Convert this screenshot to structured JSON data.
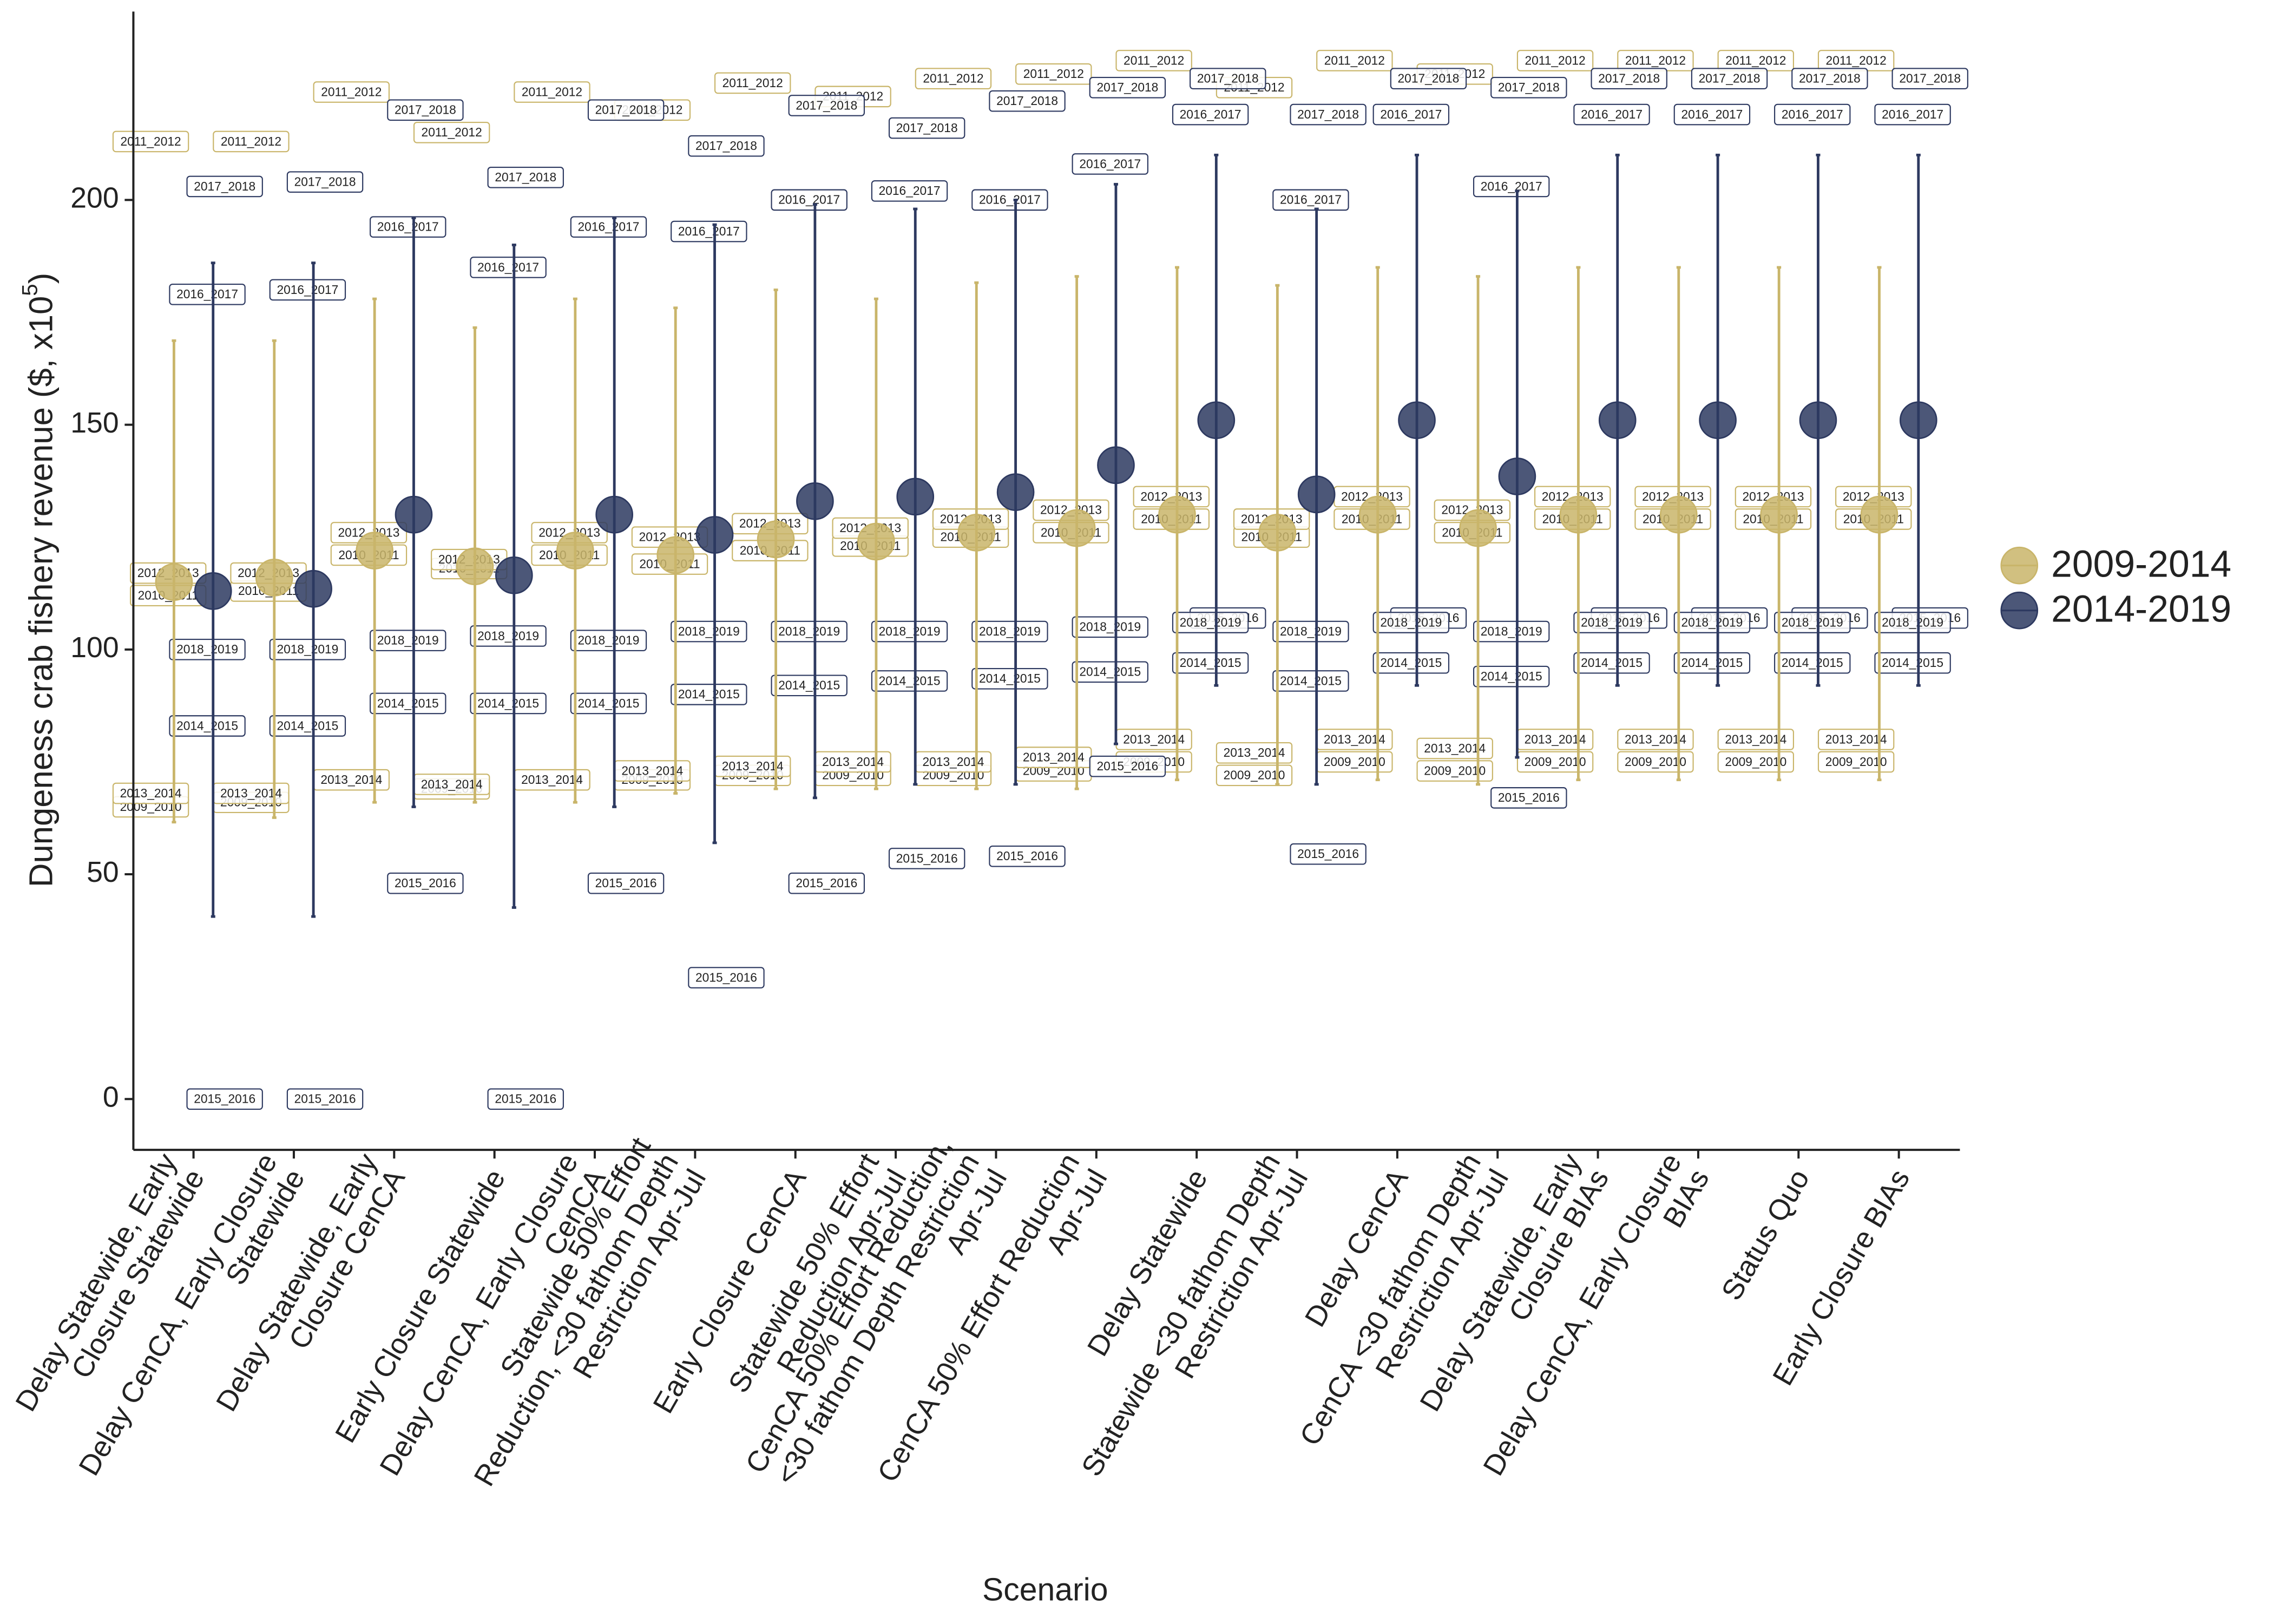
{
  "chart_data": {
    "type": "dotplot",
    "x_label": "Scenario",
    "y_label": {
      "text": "Dungeness crab fishery revenue ($, x10",
      "superscript": "5",
      "suffix": ")"
    },
    "ylim": [
      -11.3,
      241.9
    ],
    "yticks": [
      0,
      50,
      100,
      150,
      200
    ],
    "legend": "right",
    "categories": [
      [
        "Delay Statewide, Early",
        "Closure Statewide"
      ],
      [
        "Delay CenCA, Early Closure",
        "Statewide"
      ],
      [
        "Delay Statewide, Early",
        "Closure CenCA"
      ],
      [
        "Early Closure Statewide"
      ],
      [
        "Delay CenCA, Early Closure",
        "CenCA"
      ],
      [
        "Statewide 50% Effort",
        "Reduction, <30 fathom Depth",
        "Restriction Apr-Jul"
      ],
      [
        "Early Closure CenCA"
      ],
      [
        "Statewide 50% Effort",
        "Reduction Apr-Jul"
      ],
      [
        "CenCA 50% Effort Reduction,",
        "<30 fathom Depth Restriction",
        "Apr-Jul"
      ],
      [
        "CenCA 50% Effort Reduction",
        "Apr-Jul"
      ],
      [
        "Delay Statewide"
      ],
      [
        "Statewide <30 fathom Depth",
        "Restriction Apr-Jul"
      ],
      [
        "Delay CenCA"
      ],
      [
        "CenCA <30 fathom Depth",
        "Restriction Apr-Jul"
      ],
      [
        "Delay Statewide, Early",
        "Closure BIAs"
      ],
      [
        "Delay CenCA, Early Closure",
        "BIAs"
      ],
      [
        "Status Quo"
      ],
      [
        "Early Closure BIAs"
      ]
    ],
    "series": [
      {
        "name": "2009-2014",
        "color": "#c9b56a",
        "values": [
          115,
          116,
          122,
          118.5,
          122,
          121,
          124.5,
          124,
          126,
          127,
          130,
          126,
          130,
          127,
          130,
          130,
          130,
          130
        ],
        "lower": [
          61.6,
          62.6,
          66,
          66,
          66,
          68,
          69,
          69,
          69,
          69,
          71,
          70,
          71,
          70,
          71,
          71,
          71,
          71
        ],
        "upper": [
          168.7,
          168.7,
          178,
          171.6,
          178,
          176,
          180,
          178,
          181.6,
          183,
          185,
          181,
          185,
          183,
          185,
          185,
          185,
          185
        ],
        "years": [
          "2009_2010",
          "2010_2011",
          "2011_2012",
          "2012_2013",
          "2013_2014"
        ],
        "year_values": [
          [
            65,
            112,
            213,
            117,
            68
          ],
          [
            66,
            113,
            213,
            117,
            68
          ],
          [
            71,
            121,
            224,
            126,
            71
          ],
          [
            69,
            118,
            215,
            120,
            70
          ],
          [
            71,
            121,
            224,
            126,
            71
          ],
          [
            71,
            119,
            220,
            125,
            73
          ],
          [
            72,
            122,
            226,
            128,
            74
          ],
          [
            72,
            123,
            223,
            127,
            75
          ],
          [
            72,
            125,
            227,
            129,
            75
          ],
          [
            73,
            126,
            228,
            131,
            76
          ],
          [
            75,
            129,
            231,
            134,
            80
          ],
          [
            72,
            125,
            225,
            129,
            77
          ],
          [
            75,
            129,
            231,
            134,
            80
          ],
          [
            73,
            126,
            228,
            131,
            78
          ],
          [
            75,
            129,
            231,
            134,
            80
          ],
          [
            75,
            129,
            231,
            134,
            80
          ],
          [
            75,
            129,
            231,
            134,
            80
          ],
          [
            75,
            129,
            231,
            134,
            80
          ]
        ]
      },
      {
        "name": "2014-2019",
        "color": "#2d3960",
        "values": [
          113,
          113.5,
          130,
          116.5,
          130,
          125.5,
          133,
          134,
          135,
          141,
          151,
          134.5,
          151,
          138.5,
          151,
          151,
          151,
          151
        ],
        "lower": [
          40.6,
          40.6,
          65,
          42.6,
          65,
          57,
          67,
          70,
          70,
          79,
          92,
          70,
          92,
          76,
          92,
          92,
          92,
          92
        ],
        "upper": [
          186,
          186,
          196,
          190,
          196,
          194.5,
          199,
          198,
          200,
          203.5,
          210,
          198,
          210,
          202,
          210,
          210,
          210,
          210
        ],
        "years": [
          "2014_2015",
          "2015_2016",
          "2016_2017",
          "2017_2018",
          "2018_2019"
        ],
        "year_values": [
          [
            83,
            0,
            179,
            203,
            100
          ],
          [
            83,
            0,
            180,
            204,
            100
          ],
          [
            88,
            48,
            194,
            220,
            102
          ],
          [
            88,
            0,
            185,
            205,
            103
          ],
          [
            88,
            48,
            194,
            220,
            102
          ],
          [
            90,
            27,
            193,
            212,
            104
          ],
          [
            92,
            48,
            200,
            221,
            104
          ],
          [
            93,
            53.5,
            202,
            216,
            104
          ],
          [
            93.5,
            54,
            200,
            222,
            104
          ],
          [
            95,
            74,
            208,
            225,
            105
          ],
          [
            97,
            107,
            219,
            227,
            106
          ],
          [
            93,
            54.5,
            200,
            219,
            104
          ],
          [
            97,
            107,
            219,
            227,
            106
          ],
          [
            94,
            67,
            203,
            225,
            104
          ],
          [
            97,
            107,
            219,
            227,
            106
          ],
          [
            97,
            107,
            219,
            227,
            106
          ],
          [
            97,
            107,
            219,
            227,
            106
          ],
          [
            97,
            107,
            219,
            227,
            106
          ]
        ]
      }
    ]
  }
}
